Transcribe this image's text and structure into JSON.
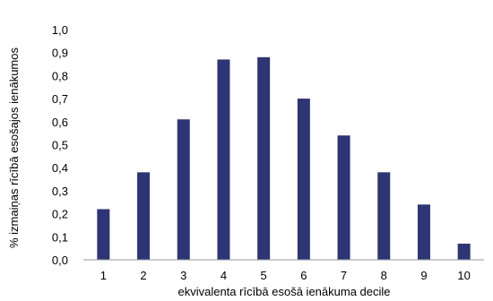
{
  "chart_data": {
    "type": "bar",
    "categories": [
      "1",
      "2",
      "3",
      "4",
      "5",
      "6",
      "7",
      "8",
      "9",
      "10"
    ],
    "values": [
      0.22,
      0.38,
      0.61,
      0.87,
      0.88,
      0.7,
      0.54,
      0.38,
      0.24,
      0.07
    ],
    "title": "",
    "xlabel": "ekvivalenta rīcībā esošā ienākuma decile",
    "ylabel": "% izmaiņas rīcībā esošajos ienākumos",
    "ylim": [
      0,
      1.0
    ],
    "yticks": [
      "0,0",
      "0,1",
      "0,2",
      "0,3",
      "0,4",
      "0,5",
      "0,6",
      "0,7",
      "0,8",
      "0,9",
      "1,0"
    ],
    "grid": false,
    "bar_color": "#2e3575"
  }
}
